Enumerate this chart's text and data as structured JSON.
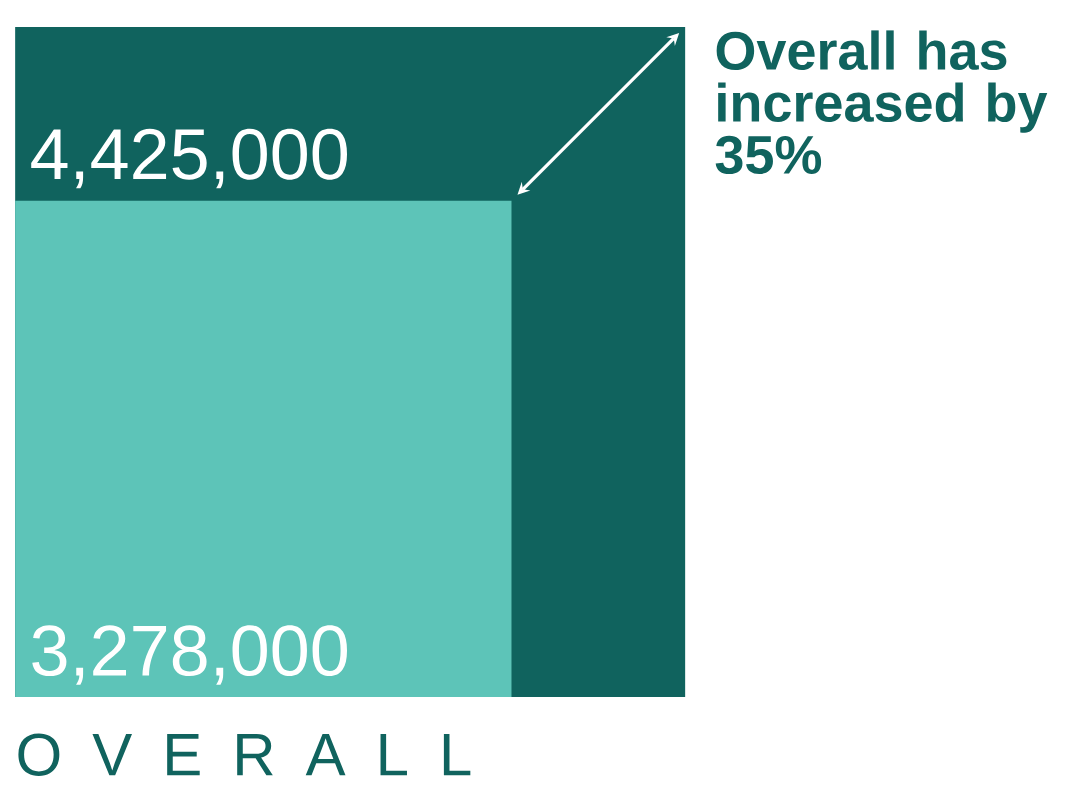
{
  "chart_data": {
    "type": "other",
    "categories": [
      "O V E R A L L"
    ],
    "series": [
      {
        "color": "#10635e",
        "values": [
          4425000
        ],
        "value_labels": [
          "4,425,000"
        ]
      },
      {
        "color": "#5dc4b8",
        "values": [
          3278000
        ],
        "value_labels": [
          "3,278,000"
        ]
      }
    ],
    "annotations": [
      "Overall has increased by 35%"
    ]
  }
}
